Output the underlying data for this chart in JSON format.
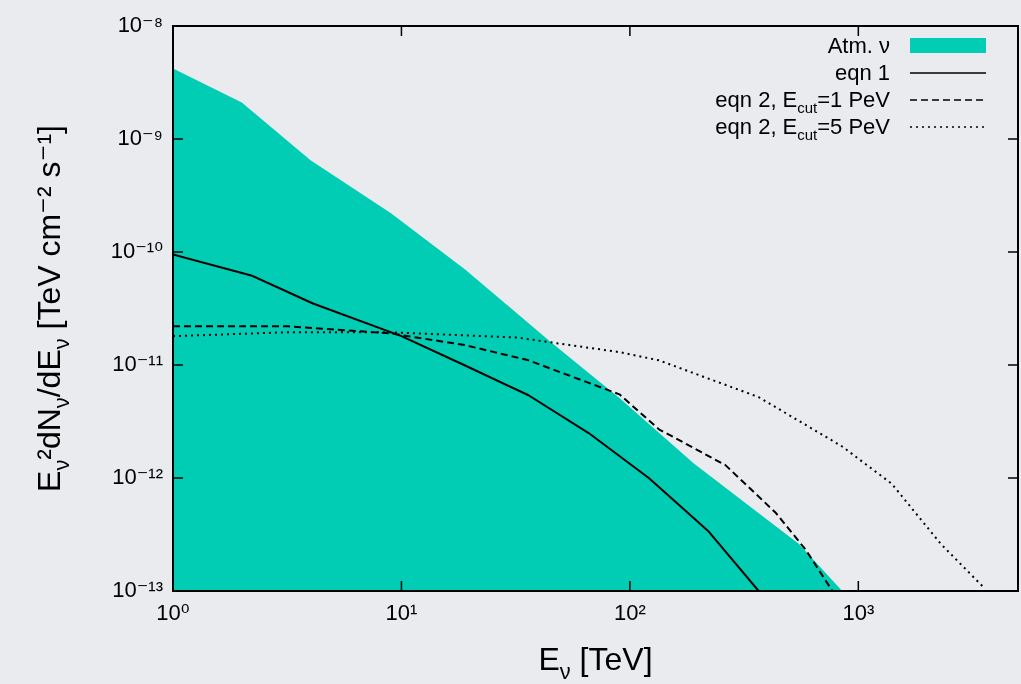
{
  "chart_data": {
    "type": "line",
    "xlabel": "E$_{ν}$ [TeV]",
    "ylabel": "E$_{ν}$²dN$_{ν}$/dE$_{ν}$ [TeV cm⁻² s⁻¹]",
    "log": "xy",
    "xlim": [
      1,
      5000
    ],
    "ylim": [
      1e-13,
      1e-08
    ],
    "xticks": [
      {
        "value": 1,
        "label": "10⁰"
      },
      {
        "value": 10,
        "label": "10¹"
      },
      {
        "value": 100,
        "label": "10²"
      },
      {
        "value": 1000,
        "label": "10³"
      }
    ],
    "yticks": [
      {
        "value": 1e-13,
        "label": "10⁻¹³"
      },
      {
        "value": 1e-12,
        "label": "10⁻¹²"
      },
      {
        "value": 1e-11,
        "label": "10⁻¹¹"
      },
      {
        "value": 1e-10,
        "label": "10⁻¹⁰"
      },
      {
        "value": 1e-09,
        "label": "10⁻⁹"
      },
      {
        "value": 1e-08,
        "label": "10⁻⁸"
      }
    ],
    "grid": false,
    "legend": "top right",
    "series": [
      {
        "name": "Atm. ν",
        "type": "area",
        "color": "#00cdb4",
        "x": [
          1,
          2,
          4,
          9,
          19,
          45,
          90,
          190,
          550,
          850
        ],
        "values": [
          4.2e-09,
          2.1e-09,
          6.5e-10,
          2.2e-10,
          7e-11,
          1.6e-11,
          5.1e-12,
          1.35e-12,
          2.6e-13,
          1e-13
        ]
      },
      {
        "name": "eqn 1",
        "type": "line",
        "line_style": "solid",
        "color": "#000000",
        "x": [
          1,
          2.2,
          4.1,
          10,
          19,
          36,
          66,
          121,
          220,
          366
        ],
        "values": [
          9.5e-11,
          6.2e-11,
          3.5e-11,
          1.8e-11,
          9.9e-12,
          5.4e-12,
          2.5e-12,
          1e-12,
          3.4e-13,
          1e-13
        ]
      },
      {
        "name": "eqn 2, E$_{cut}$=1 PeV",
        "type": "line",
        "line_style": "dashed",
        "color": "#000000",
        "x": [
          1,
          3.2,
          9,
          19,
          36,
          90,
          134,
          262,
          436,
          590,
          770
        ],
        "values": [
          2.2e-11,
          2.2e-11,
          1.9e-11,
          1.5e-11,
          1.1e-11,
          5.5e-12,
          2.7e-12,
          1.3e-12,
          4.9e-13,
          2.3e-13,
          1e-13
        ]
      },
      {
        "name": "eqn 2, E$_{cut}$=5 PeV",
        "type": "line",
        "line_style": "dotted",
        "color": "#000000",
        "x": [
          1,
          3.2,
          9,
          32,
          90,
          134,
          366,
          850,
          1400,
          2300,
          3500
        ],
        "values": [
          1.8e-11,
          1.95e-11,
          1.95e-11,
          1.75e-11,
          1.3e-11,
          1.1e-11,
          5.2e-12,
          1.9e-12,
          8.9e-13,
          2.6e-13,
          1.1e-13
        ]
      }
    ]
  }
}
